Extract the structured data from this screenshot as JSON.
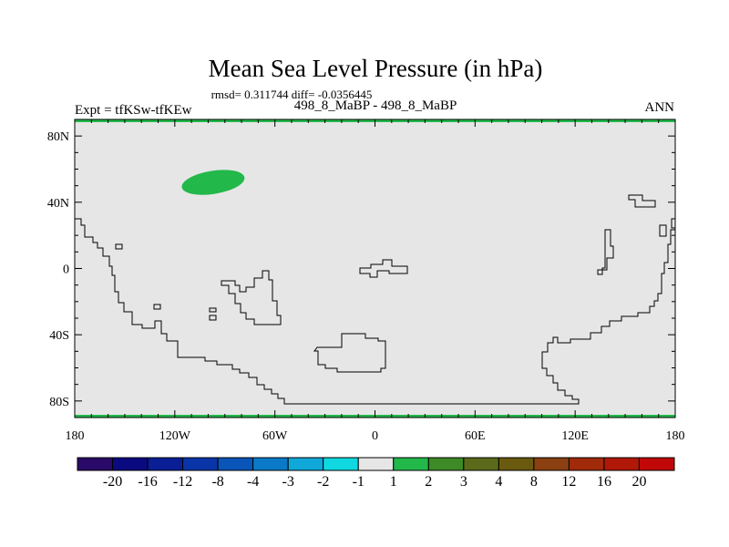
{
  "chart_data": {
    "type": "heatmap",
    "title": "Mean Sea Level Pressure (in hPa)",
    "subtitle": "rmsd= 0.311744 diff= -0.0356445",
    "left_label": "Expt = tfKSw-tfKEw",
    "center_label": "498_8_MaBP - 498_8_MaBP",
    "right_label": "ANN",
    "x_ticks": [
      "180",
      "120W",
      "60W",
      "0",
      "60E",
      "120E",
      "180"
    ],
    "y_ticks": [
      "80N",
      "40N",
      "0",
      "40S",
      "80S"
    ],
    "xlim": [
      -180,
      180
    ],
    "ylim": [
      -90,
      90
    ],
    "background_value_color": "#e6e6e6",
    "highlight_color": "#22b84a",
    "highlight_regions": [
      {
        "label": "positive anomaly 1 to 2 hPa, North Pacific/America",
        "lon_center": -97,
        "lat_center": 52,
        "lon_halfwidth": 19,
        "lat_halfwidth": 7
      }
    ],
    "band_regions": [
      {
        "label": "north polar edge",
        "lat": 90
      },
      {
        "label": "south polar edge",
        "lat": -90
      }
    ],
    "colorbar": {
      "labels": [
        "-20",
        "-16",
        "-12",
        "-8",
        "-4",
        "-3",
        "-2",
        "-1",
        "1",
        "2",
        "3",
        "4",
        "8",
        "12",
        "16",
        "20"
      ],
      "colors": [
        "#2a0a68",
        "#0a0a80",
        "#0a1e96",
        "#0a35a8",
        "#0a55b8",
        "#0a7ac8",
        "#10a8d8",
        "#10d8e0",
        "#e6e6e6",
        "#22b84a",
        "#3d8a26",
        "#5a6a1a",
        "#6a5a10",
        "#8a4010",
        "#a02a0a",
        "#b01808",
        "#c00808"
      ]
    }
  }
}
